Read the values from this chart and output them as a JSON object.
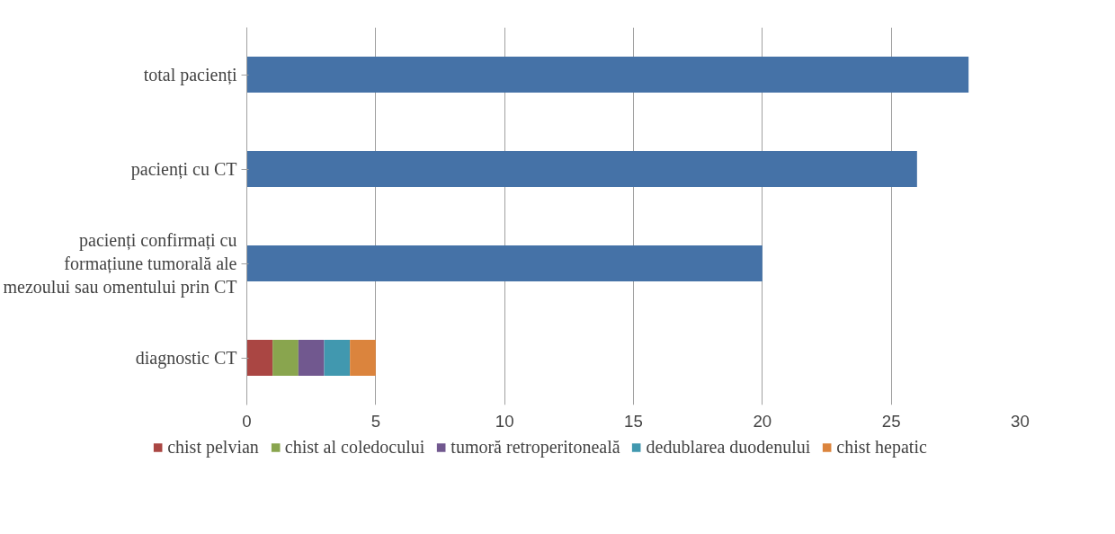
{
  "chart_data": {
    "type": "bar",
    "orientation": "horizontal",
    "stacked": true,
    "categories": [
      "total pacienți",
      "pacienți cu CT",
      "pacienți confirmați cu formațiune tumorală ale mezoului sau omentului prin CT",
      "diagnostic CT"
    ],
    "series": [
      {
        "color": "#4572a7",
        "values": [
          28,
          26,
          20,
          null
        ]
      },
      {
        "name": "chist pelvian",
        "color": "#aa4643",
        "values": [
          null,
          null,
          null,
          1
        ]
      },
      {
        "name": "chist al coledocului",
        "color": "#89a54e",
        "values": [
          null,
          null,
          null,
          1
        ]
      },
      {
        "name": "tumoră retroperitoneală",
        "color": "#71588f",
        "values": [
          null,
          null,
          null,
          1
        ]
      },
      {
        "name": "dedublarea duodenului",
        "color": "#4198af",
        "values": [
          null,
          null,
          null,
          1
        ]
      },
      {
        "name": "chist hepatic",
        "color": "#db843d",
        "values": [
          null,
          null,
          null,
          1
        ]
      }
    ],
    "xlim": [
      0,
      30
    ],
    "xticks": [
      0,
      5,
      10,
      15,
      20,
      25,
      30
    ],
    "grid": "x",
    "legend": "bottom"
  }
}
